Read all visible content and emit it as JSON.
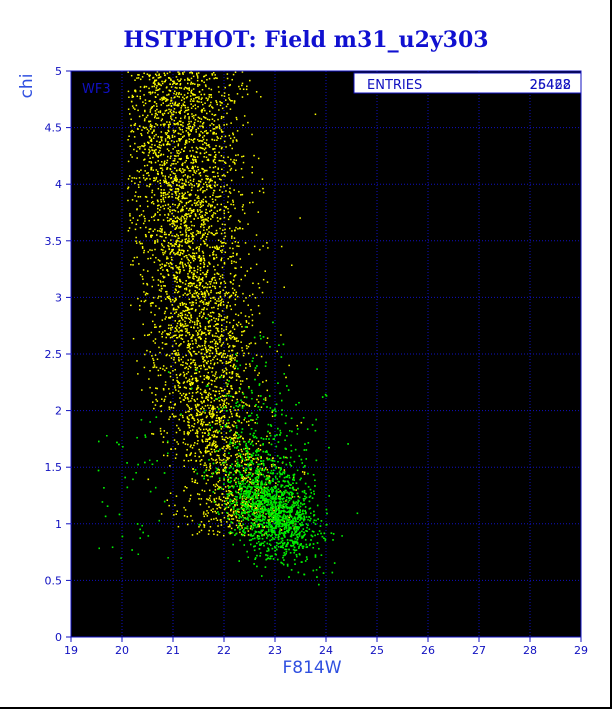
{
  "chart_data": {
    "type": "scatter",
    "title": "HSTPHOT: Field m31_u2y303",
    "xlabel": "F814W",
    "ylabel": "chi",
    "xlim": [
      19,
      29
    ],
    "ylim": [
      0,
      5
    ],
    "x_ticks": [
      "19",
      "20",
      "21",
      "22",
      "23",
      "24",
      "25",
      "26",
      "27",
      "28",
      "29"
    ],
    "y_ticks": [
      "0",
      "0.5",
      "1",
      "1.5",
      "2",
      "2.5",
      "3",
      "3.5",
      "4",
      "4.5",
      "5"
    ],
    "grid": true,
    "panel_label": "WF3",
    "stats": {
      "label": "ENTRIES",
      "value_a": "25428",
      "value_b": "26462"
    },
    "colors": {
      "series_a": "#ffff00",
      "series_b": "#00ee00",
      "axes": "#1010c0",
      "grid": "#1010c0"
    },
    "series": [
      {
        "color": "#ffff00",
        "n_points": 25428,
        "x_range": [
          20.2,
          23.8
        ],
        "y_range": [
          0.9,
          5.0
        ],
        "points": [
          [
            21.0,
            4.9
          ],
          [
            21.3,
            4.6
          ],
          [
            21.6,
            4.8
          ],
          [
            21.9,
            4.5
          ],
          [
            21.2,
            4.3
          ],
          [
            21.5,
            4.1
          ],
          [
            22.0,
            4.2
          ],
          [
            21.1,
            3.9
          ],
          [
            21.4,
            3.7
          ],
          [
            21.8,
            3.8
          ],
          [
            22.2,
            3.6
          ],
          [
            21.0,
            3.4
          ],
          [
            21.6,
            3.3
          ],
          [
            22.4,
            3.2
          ],
          [
            20.9,
            3.0
          ],
          [
            21.3,
            2.9
          ],
          [
            21.7,
            2.8
          ],
          [
            22.1,
            2.7
          ],
          [
            22.6,
            2.6
          ],
          [
            21.1,
            2.5
          ],
          [
            21.5,
            2.4
          ],
          [
            21.9,
            2.3
          ],
          [
            22.3,
            2.2
          ],
          [
            22.8,
            2.1
          ],
          [
            21.3,
            2.0
          ],
          [
            21.7,
            1.9
          ],
          [
            22.2,
            1.8
          ],
          [
            22.7,
            1.7
          ],
          [
            21.5,
            1.6
          ],
          [
            22.0,
            1.5
          ],
          [
            22.5,
            1.4
          ],
          [
            21.2,
            1.3
          ],
          [
            21.8,
            1.2
          ],
          [
            22.4,
            1.1
          ],
          [
            20.8,
            2.2
          ],
          [
            20.6,
            1.8
          ],
          [
            20.5,
            1.4
          ],
          [
            23.2,
            2.3
          ],
          [
            23.5,
            1.9
          ]
        ]
      },
      {
        "color": "#00ee00",
        "n_points": 26462,
        "x_range": [
          19.5,
          24.7
        ],
        "y_range": [
          0.4,
          2.8
        ],
        "points": [
          [
            22.8,
            1.2
          ],
          [
            23.0,
            1.1
          ],
          [
            22.6,
            1.3
          ],
          [
            23.2,
            1.0
          ],
          [
            22.9,
            0.9
          ],
          [
            23.4,
            1.2
          ],
          [
            22.4,
            1.1
          ],
          [
            23.6,
            0.8
          ],
          [
            22.2,
            1.4
          ],
          [
            23.1,
            1.5
          ],
          [
            22.7,
            1.6
          ],
          [
            23.3,
            1.7
          ],
          [
            22.5,
            1.8
          ],
          [
            23.0,
            2.0
          ],
          [
            22.3,
            2.2
          ],
          [
            22.8,
            2.4
          ],
          [
            21.8,
            1.2
          ],
          [
            21.5,
            1.0
          ],
          [
            24.0,
            1.0
          ],
          [
            24.3,
            0.9
          ],
          [
            23.8,
            0.6
          ],
          [
            22.9,
            0.7
          ],
          [
            19.6,
            1.2
          ],
          [
            19.8,
            0.8
          ],
          [
            20.2,
            1.4
          ],
          [
            20.5,
            0.9
          ],
          [
            24.6,
            1.1
          ]
        ]
      }
    ]
  }
}
